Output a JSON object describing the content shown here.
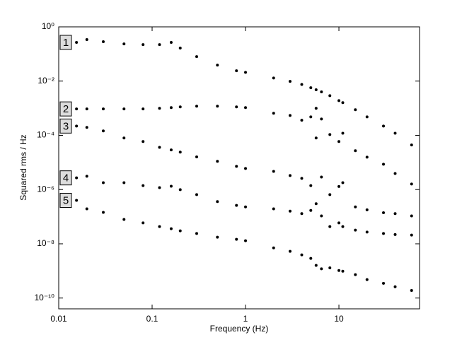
{
  "chart_data": {
    "type": "scatter",
    "xlabel": "Frequency (Hz)",
    "ylabel": "Squared rms / Hz",
    "xscale": "log",
    "yscale": "log",
    "xlim": [
      0.01,
      73
    ],
    "ylim": [
      4e-11,
      1
    ],
    "xticks": [
      0.01,
      0.1,
      1,
      10
    ],
    "yticks": [
      {
        "value": 1,
        "label": "10⁰"
      },
      {
        "value": 0.01,
        "label": "10⁻²"
      },
      {
        "value": 0.0001,
        "label": "10⁻⁴"
      },
      {
        "value": 1e-06,
        "label": "10⁻⁶"
      },
      {
        "value": 1e-08,
        "label": "10⁻⁸"
      },
      {
        "value": 1e-10,
        "label": "10⁻¹⁰"
      }
    ],
    "x": [
      0.0155,
      0.02,
      0.03,
      0.05,
      0.08,
      0.12,
      0.16,
      0.2,
      0.3,
      0.5,
      0.8,
      1,
      2,
      3,
      4,
      5,
      5.7,
      6.5,
      8,
      10,
      11,
      15,
      20,
      30,
      40,
      60
    ],
    "series": [
      {
        "name": "1",
        "color": "#000000",
        "values": [
          0.267,
          0.339,
          0.283,
          0.236,
          0.222,
          0.222,
          0.267,
          0.165,
          0.08,
          0.039,
          0.024,
          0.021,
          0.013,
          0.0098,
          0.0075,
          0.0057,
          0.0048,
          0.004,
          0.0029,
          0.0019,
          0.0016,
          0.00088,
          0.00048,
          0.00022,
          0.00012,
          4.4e-05
        ]
      },
      {
        "name": "2",
        "color": "#000000",
        "values": [
          0.00094,
          0.00094,
          0.00094,
          0.00094,
          0.00094,
          0.00099,
          0.00105,
          0.00112,
          0.00119,
          0.00119,
          0.00112,
          0.00105,
          0.00065,
          0.00054,
          0.00036,
          0.00048,
          0.00099,
          0.0004,
          0.000107,
          5.9e-05,
          0.00012,
          2.7e-05,
          1.57e-05,
          8.6e-06,
          3.9e-06,
          1.6e-06
        ]
      },
      {
        "name": "3",
        "color": "#000000",
        "values": [
          0.00022,
          0.000196,
          0.000145,
          8e-05,
          5.9e-05,
          3.6e-05,
          2.9e-05,
          2.4e-05,
          1.6e-05,
          1.1e-05,
          7.2e-06,
          6e-06,
          4.7e-06,
          3.3e-06,
          2.6e-06,
          1.4e-06,
          8e-05,
          2.9e-06,
          6.5e-07,
          1.3e-06,
          1.8e-06,
          2.3e-07,
          1.8e-07,
          1.4e-07,
          1.3e-07,
          1.07e-07
        ]
      },
      {
        "name": "4",
        "color": "#000000",
        "values": [
          2.7e-06,
          3.1e-06,
          1.8e-06,
          1.8e-06,
          1.4e-06,
          1.18e-06,
          1.33e-06,
          9.9e-07,
          6.5e-07,
          3.6e-07,
          2.6e-07,
          2.3e-07,
          1.95e-07,
          1.6e-07,
          1.3e-07,
          1.7e-07,
          3e-07,
          1.07e-07,
          4.3e-08,
          5.9e-08,
          4.3e-08,
          3.2e-08,
          2.7e-08,
          2.4e-08,
          2.2e-08,
          2.1e-08
        ]
      },
      {
        "name": "5",
        "color": "#000000",
        "values": [
          4e-07,
          1.95e-07,
          1.44e-07,
          7.9e-08,
          5.9e-08,
          4.3e-08,
          3.6e-08,
          3e-08,
          2.4e-08,
          1.76e-08,
          1.47e-08,
          1.3e-08,
          7.1e-09,
          5.3e-09,
          3.9e-09,
          2.9e-09,
          1.6e-09,
          1.2e-09,
          1.3e-09,
          1.04e-09,
          9.8e-10,
          7.3e-10,
          4.8e-10,
          3.5e-10,
          2.6e-10,
          1.9e-10
        ]
      }
    ]
  }
}
